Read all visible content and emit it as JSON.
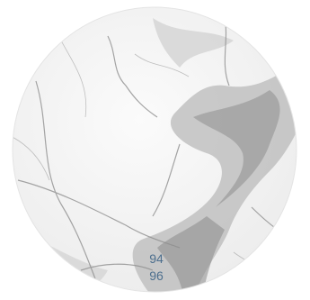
{
  "labels": [
    "94",
    "96"
  ]
}
